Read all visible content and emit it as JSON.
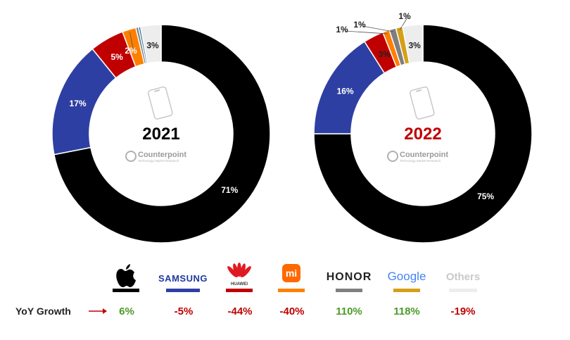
{
  "chart_data": [
    {
      "type": "pie",
      "title": "2021",
      "slices": [
        {
          "name": "Apple",
          "value": 71,
          "label": "71%",
          "color": "#000000"
        },
        {
          "name": "Samsung",
          "value": 17,
          "label": "17%",
          "color": "#2e3fa3"
        },
        {
          "name": "Huawei",
          "value": 5,
          "label": "5%",
          "color": "#c00000"
        },
        {
          "name": "Xiaomi",
          "value": 2,
          "label": "2%",
          "color": "#ff7f00"
        },
        {
          "name": "Honor",
          "value": 0.4,
          "label": "",
          "color": "#7f7f7f"
        },
        {
          "name": "Google",
          "value": 0.3,
          "label": "",
          "color": "#1f6f9f"
        },
        {
          "name": "Others",
          "value": 3,
          "label": "3%",
          "color": "#ededed"
        }
      ]
    },
    {
      "type": "pie",
      "title": "2022",
      "slices": [
        {
          "name": "Apple",
          "value": 75,
          "label": "75%",
          "color": "#000000"
        },
        {
          "name": "Samsung",
          "value": 16,
          "label": "16%",
          "color": "#2e3fa3"
        },
        {
          "name": "Huawei",
          "value": 3,
          "label": "3%",
          "color": "#c00000"
        },
        {
          "name": "Xiaomi",
          "value": 1,
          "label": "1%",
          "color": "#ff7f00"
        },
        {
          "name": "Honor",
          "value": 1,
          "label": "1%",
          "color": "#7f7f7f"
        },
        {
          "name": "Google",
          "value": 1,
          "label": "1%",
          "color": "#d4a017"
        },
        {
          "name": "Others",
          "value": 3,
          "label": "3%",
          "color": "#ededed"
        }
      ]
    }
  ],
  "watermark": {
    "name": "Counterpoint",
    "sub": "Technology Market Research"
  },
  "legend": [
    {
      "brand": "Apple",
      "text": "",
      "color": "#000000",
      "growth": "6%",
      "growth_color": "#4d9a2a"
    },
    {
      "brand": "Samsung",
      "text": "SAMSUNG",
      "color": "#2e3fa3",
      "growth": "-5%",
      "growth_color": "#c00000"
    },
    {
      "brand": "Huawei",
      "text": "HUAWEI",
      "color": "#c00000",
      "growth": "-44%",
      "growth_color": "#c00000"
    },
    {
      "brand": "Xiaomi",
      "text": "mi",
      "color": "#ff7f00",
      "growth": "-40%",
      "growth_color": "#c00000"
    },
    {
      "brand": "Honor",
      "text": "HONOR",
      "color": "#7f7f7f",
      "growth": "110%",
      "growth_color": "#4d9a2a"
    },
    {
      "brand": "Google",
      "text": "Google",
      "color": "#d4a017",
      "growth": "118%",
      "growth_color": "#4d9a2a"
    },
    {
      "brand": "Others",
      "text": "Others",
      "color": "#ededed",
      "growth": "-19%",
      "growth_color": "#c00000"
    }
  ],
  "yoy_label": "YoY Growth"
}
